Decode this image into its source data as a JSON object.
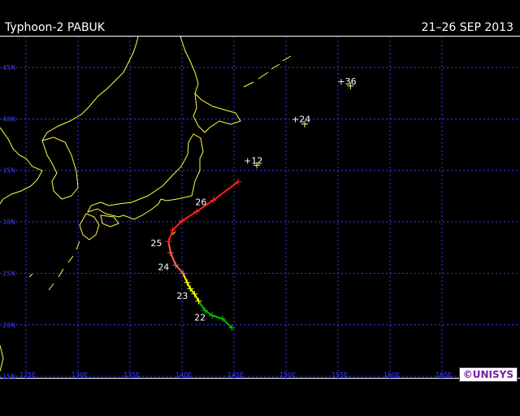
{
  "header": {
    "title": "Typhoon-2 PABUK",
    "dates": "21–26 SEP 2013"
  },
  "map": {
    "lat_labels": [
      "45N",
      "40N",
      "35N",
      "30N",
      "25N",
      "20N",
      "15N"
    ],
    "lon_labels": [
      "125E",
      "130E",
      "135E",
      "140E",
      "145E",
      "150E",
      "155E",
      "160E",
      "165E"
    ],
    "grid_color": "#3a3aff",
    "coast_color": "#ffff40"
  },
  "track": {
    "legend": {
      "tropical_storm": "#00c000",
      "typhoon_cat1": "#ffff00",
      "typhoon_cat2": "#ff6060",
      "extratropical": "#ff2020"
    },
    "points": [
      {
        "lon": 144.8,
        "lat": 19.7,
        "day": ""
      },
      {
        "lon": 143.9,
        "lat": 20.6,
        "day": ""
      },
      {
        "lon": 142.9,
        "lat": 20.9,
        "day": "22"
      },
      {
        "lon": 142.2,
        "lat": 21.4,
        "day": ""
      },
      {
        "lon": 141.6,
        "lat": 22.3,
        "day": ""
      },
      {
        "lon": 141.2,
        "lat": 23.0,
        "day": "23"
      },
      {
        "lon": 140.8,
        "lat": 23.5,
        "day": ""
      },
      {
        "lon": 140.5,
        "lat": 24.1,
        "day": ""
      },
      {
        "lon": 140.1,
        "lat": 25.0,
        "day": ""
      },
      {
        "lon": 139.4,
        "lat": 25.8,
        "day": "24"
      },
      {
        "lon": 138.9,
        "lat": 27.0,
        "day": ""
      },
      {
        "lon": 138.7,
        "lat": 28.1,
        "day": "25"
      },
      {
        "lon": 139.1,
        "lat": 29.2,
        "day": ""
      },
      {
        "lon": 140.0,
        "lat": 30.1,
        "day": ""
      },
      {
        "lon": 141.4,
        "lat": 31.0,
        "day": ""
      },
      {
        "lon": 143.0,
        "lat": 32.1,
        "day": "26"
      },
      {
        "lon": 145.4,
        "lat": 33.9,
        "day": ""
      }
    ],
    "forecast": [
      {
        "label": "+12",
        "lon": 147.2,
        "lat": 35.5
      },
      {
        "label": "+24",
        "lon": 151.8,
        "lat": 39.5
      },
      {
        "label": "+36",
        "lon": 156.2,
        "lat": 43.2
      }
    ]
  },
  "logo": {
    "text": "©UNISYS"
  }
}
